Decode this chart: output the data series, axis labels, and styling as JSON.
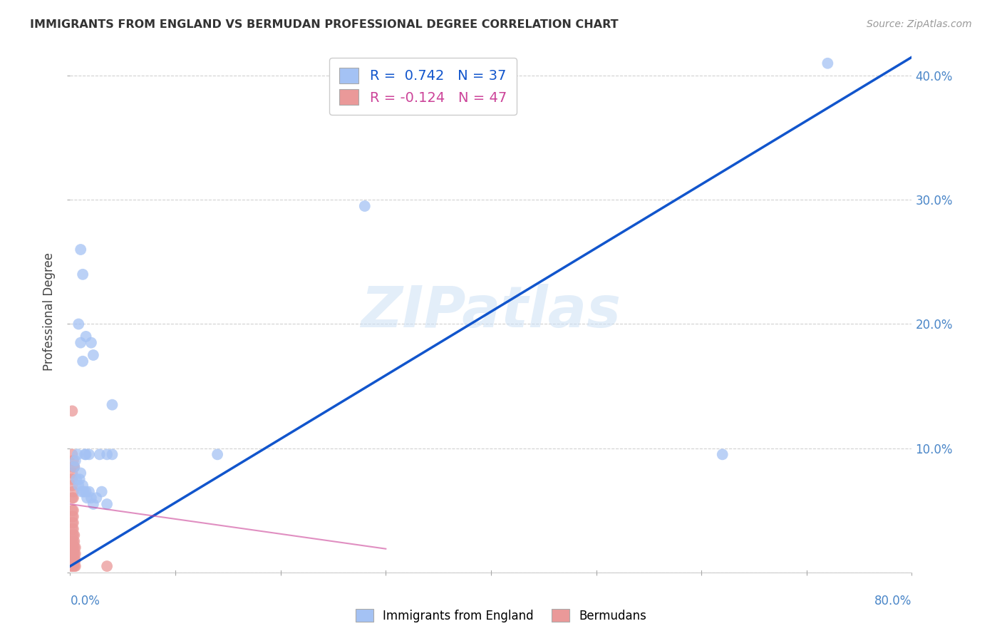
{
  "title": "IMMIGRANTS FROM ENGLAND VS BERMUDAN PROFESSIONAL DEGREE CORRELATION CHART",
  "source": "Source: ZipAtlas.com",
  "ylabel": "Professional Degree",
  "xlim": [
    0.0,
    0.8
  ],
  "ylim": [
    0.0,
    0.42
  ],
  "xticks": [
    0.0,
    0.1,
    0.2,
    0.3,
    0.4,
    0.5,
    0.6,
    0.7,
    0.8
  ],
  "yticks": [
    0.0,
    0.1,
    0.2,
    0.3,
    0.4
  ],
  "right_yticklabels": [
    "",
    "10.0%",
    "20.0%",
    "30.0%",
    "40.0%"
  ],
  "x_edge_labels": [
    "0.0%",
    "80.0%"
  ],
  "blue_color": "#a4c2f4",
  "pink_color": "#ea9999",
  "blue_line_color": "#1155cc",
  "pink_line_color": "#cc4499",
  "legend_R_blue": "0.742",
  "legend_N_blue": "37",
  "legend_R_pink": "-0.124",
  "legend_N_pink": "47",
  "watermark": "ZIPatlas",
  "blue_x": [
    0.004,
    0.005,
    0.006,
    0.007,
    0.008,
    0.009,
    0.01,
    0.011,
    0.012,
    0.013,
    0.014,
    0.015,
    0.016,
    0.018,
    0.02,
    0.022,
    0.025,
    0.03,
    0.035,
    0.04,
    0.01,
    0.012,
    0.015,
    0.02,
    0.04,
    0.14,
    0.28,
    0.62,
    0.72,
    0.008,
    0.01,
    0.012,
    0.015,
    0.018,
    0.022,
    0.028,
    0.035
  ],
  "blue_y": [
    0.085,
    0.09,
    0.075,
    0.095,
    0.07,
    0.075,
    0.08,
    0.065,
    0.07,
    0.065,
    0.095,
    0.065,
    0.06,
    0.065,
    0.06,
    0.055,
    0.06,
    0.065,
    0.055,
    0.095,
    0.26,
    0.24,
    0.19,
    0.185,
    0.135,
    0.095,
    0.295,
    0.095,
    0.41,
    0.2,
    0.185,
    0.17,
    0.095,
    0.095,
    0.175,
    0.095,
    0.095
  ],
  "pink_x": [
    0.002,
    0.002,
    0.002,
    0.002,
    0.002,
    0.002,
    0.002,
    0.002,
    0.002,
    0.002,
    0.003,
    0.003,
    0.003,
    0.003,
    0.003,
    0.003,
    0.003,
    0.003,
    0.003,
    0.003,
    0.004,
    0.004,
    0.004,
    0.004,
    0.004,
    0.004,
    0.005,
    0.005,
    0.005,
    0.005,
    0.001,
    0.001,
    0.001,
    0.001,
    0.001,
    0.002,
    0.003,
    0.003,
    0.002,
    0.002,
    0.002,
    0.003,
    0.004,
    0.003,
    0.002,
    0.035,
    0.002
  ],
  "pink_y": [
    0.005,
    0.01,
    0.015,
    0.02,
    0.025,
    0.03,
    0.035,
    0.04,
    0.045,
    0.05,
    0.005,
    0.01,
    0.015,
    0.02,
    0.025,
    0.03,
    0.035,
    0.04,
    0.045,
    0.05,
    0.005,
    0.01,
    0.015,
    0.02,
    0.025,
    0.03,
    0.005,
    0.01,
    0.015,
    0.02,
    0.005,
    0.01,
    0.015,
    0.02,
    0.025,
    0.06,
    0.06,
    0.065,
    0.07,
    0.075,
    0.08,
    0.085,
    0.085,
    0.09,
    0.095,
    0.005,
    0.13
  ]
}
